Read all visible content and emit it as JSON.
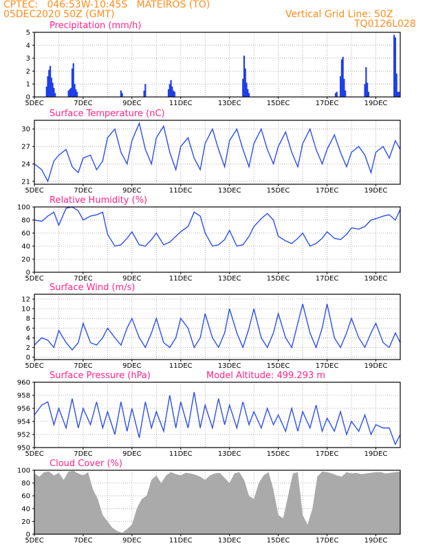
{
  "header": {
    "line1": "CPTEC:   046:53W-10:45S   MATEIROS (TO)",
    "line2": "05DEC2020 50Z (GMT)",
    "grid_note": "Vertical Grid Line: 50Z",
    "code": "TQ0126L028"
  },
  "colors": {
    "series": "#2a4ef0",
    "bars": "#1f3fe8",
    "cloud": "#aaaaaa",
    "title": "#ff2288",
    "header": "#ff8c1a"
  },
  "x_ticks": [
    "5DEC",
    "7DEC",
    "9DEC",
    "11DEC",
    "13DEC",
    "15DEC",
    "17DEC",
    "19DEC"
  ],
  "x_range_days": [
    5,
    20
  ],
  "chart_data": [
    {
      "type": "bar",
      "title": "Precipitation (mm/h)",
      "ylim": [
        0,
        5
      ],
      "yticks": [
        0,
        1,
        2,
        3,
        4,
        5
      ],
      "x": [
        5.5,
        5.55,
        5.6,
        5.65,
        5.7,
        5.75,
        5.8,
        5.85,
        6.4,
        6.45,
        6.5,
        6.55,
        6.6,
        6.65,
        6.7,
        6.75,
        8.55,
        8.6,
        9.5,
        9.55,
        10.5,
        10.55,
        10.6,
        10.65,
        10.7,
        10.75,
        13.55,
        13.6,
        13.65,
        13.7,
        13.75,
        13.8,
        17.35,
        17.4,
        17.55,
        17.6,
        17.65,
        17.7,
        17.75,
        18.55,
        18.6,
        18.65,
        18.7,
        19.75,
        19.8,
        19.85,
        19.9,
        19.95
      ],
      "values": [
        0.8,
        1.6,
        2.1,
        2.4,
        1.5,
        1.1,
        0.7,
        0.3,
        0.5,
        0.6,
        0.7,
        2.2,
        2.6,
        1.0,
        0.6,
        0.4,
        0.5,
        0.3,
        0.5,
        1.0,
        0.6,
        1.0,
        1.3,
        0.8,
        0.5,
        0.4,
        1.4,
        3.2,
        2.2,
        1.1,
        0.6,
        0.3,
        0.3,
        0.4,
        1.6,
        2.9,
        3.1,
        1.4,
        0.5,
        1.0,
        2.3,
        1.1,
        0.4,
        4.8,
        4.6,
        1.8,
        0.4,
        0.4
      ]
    },
    {
      "type": "line",
      "title": "Surface Temperature (nC)",
      "ylim": [
        20.5,
        31.5
      ],
      "yticks": [
        21,
        24,
        27,
        30
      ],
      "x": [
        5,
        5.3,
        5.55,
        5.8,
        6.0,
        6.3,
        6.55,
        6.8,
        7.0,
        7.3,
        7.55,
        7.8,
        8.0,
        8.3,
        8.55,
        8.8,
        9.0,
        9.3,
        9.55,
        9.8,
        10.0,
        10.3,
        10.55,
        10.8,
        11.0,
        11.3,
        11.55,
        11.8,
        12.0,
        12.3,
        12.55,
        12.8,
        13.0,
        13.3,
        13.55,
        13.8,
        14.0,
        14.3,
        14.55,
        14.8,
        15.0,
        15.3,
        15.55,
        15.8,
        16.0,
        16.3,
        16.55,
        16.8,
        17.0,
        17.3,
        17.55,
        17.8,
        18.0,
        18.3,
        18.55,
        18.8,
        19.0,
        19.3,
        19.55,
        19.8,
        20.0
      ],
      "values": [
        24.0,
        23.0,
        21.0,
        24.5,
        25.5,
        26.5,
        23.5,
        22.5,
        25.0,
        25.5,
        23.0,
        24.5,
        28.5,
        30.0,
        26.0,
        24.0,
        28.0,
        31.0,
        26.5,
        24.0,
        28.5,
        30.5,
        26.0,
        23.0,
        27.0,
        28.5,
        25.0,
        23.0,
        27.5,
        30.0,
        26.5,
        23.5,
        28.0,
        30.0,
        26.5,
        23.5,
        27.5,
        30.0,
        26.5,
        24.0,
        27.0,
        29.5,
        26.0,
        23.5,
        27.5,
        30.0,
        26.5,
        24.0,
        26.5,
        29.0,
        26.0,
        23.5,
        26.0,
        27.0,
        25.5,
        22.5,
        26.0,
        27.0,
        25.0,
        28.0,
        26.5
      ]
    },
    {
      "type": "line",
      "title": "Relative Humidity (%)",
      "ylim": [
        0,
        100
      ],
      "yticks": [
        0,
        20,
        40,
        60,
        80,
        100
      ],
      "x": [
        5,
        5.3,
        5.55,
        5.8,
        6.0,
        6.3,
        6.55,
        6.8,
        7.0,
        7.3,
        7.55,
        7.8,
        8.0,
        8.3,
        8.55,
        8.8,
        9.0,
        9.3,
        9.55,
        9.8,
        10.0,
        10.3,
        10.55,
        10.8,
        11.0,
        11.3,
        11.55,
        11.8,
        12.0,
        12.3,
        12.55,
        12.8,
        13.0,
        13.3,
        13.55,
        13.8,
        14.0,
        14.3,
        14.55,
        14.8,
        15.0,
        15.3,
        15.55,
        15.8,
        16.0,
        16.3,
        16.55,
        16.8,
        17.0,
        17.3,
        17.55,
        17.8,
        18.0,
        18.3,
        18.55,
        18.8,
        19.0,
        19.3,
        19.55,
        19.8,
        20.0
      ],
      "values": [
        80,
        78,
        86,
        92,
        72,
        98,
        100,
        94,
        80,
        86,
        88,
        92,
        58,
        40,
        42,
        52,
        62,
        42,
        40,
        50,
        60,
        42,
        46,
        55,
        62,
        70,
        92,
        86,
        60,
        40,
        42,
        50,
        64,
        40,
        42,
        55,
        70,
        82,
        90,
        80,
        55,
        48,
        44,
        52,
        60,
        40,
        44,
        52,
        62,
        52,
        50,
        58,
        68,
        66,
        70,
        80,
        82,
        86,
        88,
        80,
        96
      ]
    },
    {
      "type": "line",
      "title": "Surface Wind (m/s)",
      "ylim": [
        -0.5,
        13
      ],
      "yticks": [
        0,
        2,
        4,
        6,
        8,
        10,
        12
      ],
      "x": [
        5,
        5.3,
        5.55,
        5.8,
        6.0,
        6.3,
        6.55,
        6.8,
        7.0,
        7.3,
        7.55,
        7.8,
        8.0,
        8.3,
        8.55,
        8.8,
        9.0,
        9.3,
        9.55,
        9.8,
        10.0,
        10.3,
        10.55,
        10.8,
        11.0,
        11.3,
        11.55,
        11.8,
        12.0,
        12.3,
        12.55,
        12.8,
        13.0,
        13.3,
        13.55,
        13.8,
        14.0,
        14.3,
        14.55,
        14.8,
        15.0,
        15.3,
        15.55,
        15.8,
        16.0,
        16.3,
        16.55,
        16.8,
        17.0,
        17.3,
        17.55,
        17.8,
        18.0,
        18.3,
        18.55,
        18.8,
        19.0,
        19.3,
        19.55,
        19.8,
        20.0
      ],
      "values": [
        2.5,
        4,
        3.5,
        2,
        5.5,
        3,
        1.5,
        3,
        7,
        3,
        2.5,
        4,
        6,
        4,
        2.5,
        6,
        8,
        4,
        2,
        5,
        8,
        3,
        2,
        4,
        8,
        6,
        2,
        4,
        9,
        4,
        2,
        5,
        10,
        5,
        2,
        6,
        10,
        4,
        2,
        5,
        9,
        4,
        2,
        7,
        11,
        5,
        2,
        6,
        11,
        4,
        2,
        5,
        8,
        4,
        2,
        5,
        7,
        3,
        2,
        5,
        3
      ]
    },
    {
      "type": "line",
      "title": "Surface Pressure (hPa)",
      "annotation": "Model Altitude: 499.293 m",
      "ylim": [
        950,
        960
      ],
      "yticks": [
        950,
        952,
        954,
        956,
        958,
        960
      ],
      "x": [
        5,
        5.3,
        5.55,
        5.8,
        6.0,
        6.3,
        6.55,
        6.8,
        7.0,
        7.3,
        7.55,
        7.8,
        8.0,
        8.3,
        8.55,
        8.8,
        9.0,
        9.3,
        9.55,
        9.8,
        10.0,
        10.3,
        10.55,
        10.8,
        11.0,
        11.3,
        11.55,
        11.8,
        12.0,
        12.3,
        12.55,
        12.8,
        13.0,
        13.3,
        13.55,
        13.8,
        14.0,
        14.3,
        14.55,
        14.8,
        15.0,
        15.3,
        15.55,
        15.8,
        16.0,
        16.3,
        16.55,
        16.8,
        17.0,
        17.3,
        17.55,
        17.8,
        18.0,
        18.3,
        18.55,
        18.8,
        19.0,
        19.3,
        19.55,
        19.8,
        20.0
      ],
      "values": [
        955,
        956.5,
        957,
        953.5,
        956,
        953,
        957.5,
        953,
        956,
        953.5,
        957,
        953,
        955.5,
        952,
        957,
        952.5,
        956,
        951.5,
        957,
        953,
        955.5,
        952.5,
        958,
        953,
        957,
        953,
        958.5,
        953,
        956.5,
        953,
        957.5,
        953.5,
        956.5,
        953,
        957,
        953.5,
        955.5,
        953,
        956,
        953.5,
        955,
        952.5,
        956,
        952.5,
        955.5,
        953,
        956.5,
        952.5,
        954.5,
        952.5,
        955.5,
        952,
        954,
        952.5,
        955,
        952,
        953.5,
        953,
        953,
        950.5,
        952
      ]
    },
    {
      "type": "area",
      "title": "Cloud Cover (%)",
      "ylim": [
        0,
        100
      ],
      "yticks": [
        0,
        20,
        40,
        60,
        80,
        100
      ],
      "x": [
        5,
        5.2,
        5.4,
        5.6,
        5.8,
        6.0,
        6.2,
        6.4,
        6.6,
        6.8,
        7.0,
        7.2,
        7.4,
        7.6,
        7.8,
        8.0,
        8.2,
        8.4,
        8.6,
        8.8,
        9.0,
        9.2,
        9.4,
        9.6,
        9.8,
        10.0,
        10.2,
        10.4,
        10.6,
        10.8,
        11.0,
        11.2,
        11.4,
        11.6,
        11.8,
        12.0,
        12.2,
        12.4,
        12.6,
        12.8,
        13.0,
        13.2,
        13.4,
        13.6,
        13.8,
        14.0,
        14.2,
        14.4,
        14.6,
        14.8,
        15.0,
        15.2,
        15.4,
        15.6,
        15.8,
        16.0,
        16.2,
        16.4,
        16.6,
        16.8,
        17.0,
        17.2,
        17.4,
        17.6,
        17.8,
        18.0,
        18.2,
        18.4,
        18.6,
        18.8,
        19.0,
        19.2,
        19.4,
        19.6,
        19.8,
        20.0
      ],
      "values": [
        95,
        90,
        97,
        98,
        92,
        96,
        85,
        98,
        99,
        95,
        92,
        97,
        70,
        55,
        30,
        20,
        10,
        5,
        2,
        8,
        15,
        40,
        55,
        60,
        85,
        92,
        80,
        92,
        97,
        94,
        92,
        96,
        95,
        93,
        90,
        85,
        92,
        95,
        96,
        88,
        80,
        95,
        97,
        85,
        60,
        55,
        80,
        92,
        97,
        70,
        30,
        25,
        60,
        95,
        97,
        30,
        15,
        40,
        90,
        98,
        97,
        95,
        92,
        90,
        97,
        95,
        96,
        94,
        95,
        96,
        97,
        97,
        95,
        96,
        97,
        98
      ]
    }
  ]
}
